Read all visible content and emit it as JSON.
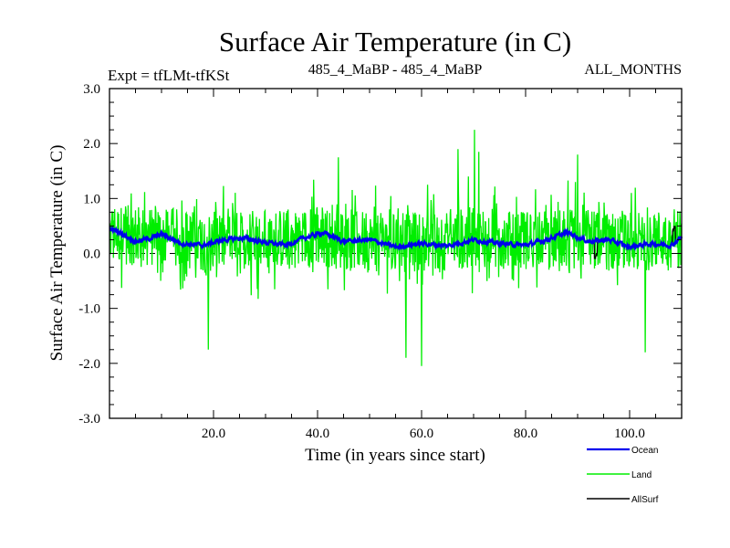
{
  "chart_data": {
    "type": "line",
    "title": "Surface Air Temperature (in C)",
    "subtitle_left": "Expt = tfLMt-tfKSt",
    "subtitle_center": "485_4_MaBP - 485_4_MaBP",
    "subtitle_right": "ALL_MONTHS",
    "xlabel": "Time (in years since start)",
    "ylabel": "Surface Air Temperature (in C)",
    "xlim": [
      0,
      110
    ],
    "ylim": [
      -3.0,
      3.0
    ],
    "x_ticks": [
      20,
      40,
      60,
      80,
      100
    ],
    "x_tick_labels": [
      "20.0",
      "40.0",
      "60.0",
      "80.0",
      "100.0"
    ],
    "y_ticks": [
      -3,
      -2,
      -1,
      0,
      1,
      2,
      3
    ],
    "y_tick_labels": [
      "-3.0",
      "-2.0",
      "-1.0",
      "0.0",
      "1.0",
      "2.0",
      "3.0"
    ],
    "zero_line": true,
    "legend_placement": "bottom-right",
    "series": [
      {
        "name": "Ocean",
        "color": "#0000ee",
        "segment_years": [
          0,
          2,
          5,
          8,
          10,
          14,
          18,
          22,
          26,
          30,
          34,
          38,
          41,
          45,
          50,
          55,
          60,
          65,
          70,
          75,
          80,
          84,
          88,
          92,
          96,
          100,
          104,
          108,
          110
        ],
        "segment_values": [
          0.45,
          0.38,
          0.22,
          0.28,
          0.35,
          0.18,
          0.15,
          0.25,
          0.28,
          0.2,
          0.15,
          0.3,
          0.38,
          0.22,
          0.25,
          0.12,
          0.18,
          0.14,
          0.25,
          0.18,
          0.15,
          0.25,
          0.38,
          0.22,
          0.25,
          0.12,
          0.18,
          0.15,
          0.3
        ],
        "monthly_noise_amplitude": 0.07
      },
      {
        "name": "Land",
        "color": "#00ee00",
        "segment_years": [
          0,
          10,
          20,
          30,
          40,
          50,
          60,
          70,
          80,
          90,
          100,
          110
        ],
        "segment_values": [
          0.35,
          0.3,
          0.2,
          0.25,
          0.3,
          0.2,
          0.2,
          0.3,
          0.25,
          0.25,
          0.2,
          0.3
        ],
        "monthly_noise_amplitude": 0.55,
        "max_value": 2.25,
        "max_year": 70.2,
        "min_value": -2.05,
        "min_year": 60.0,
        "spikes": [
          {
            "year": 44,
            "value": 1.75
          },
          {
            "year": 67,
            "value": 1.9
          },
          {
            "year": 71,
            "value": 1.85
          },
          {
            "year": 90,
            "value": 1.8
          },
          {
            "year": 19,
            "value": -1.75
          },
          {
            "year": 57,
            "value": -1.9
          },
          {
            "year": 103,
            "value": -1.8
          }
        ]
      },
      {
        "name": "AllSurf",
        "color": "#000000",
        "note": "mostly overlaps Ocean; visible only where it departs from it",
        "departures": [
          {
            "year": 93.5,
            "value": -0.05
          },
          {
            "year": 108.5,
            "value": 0.45
          }
        ]
      }
    ]
  }
}
